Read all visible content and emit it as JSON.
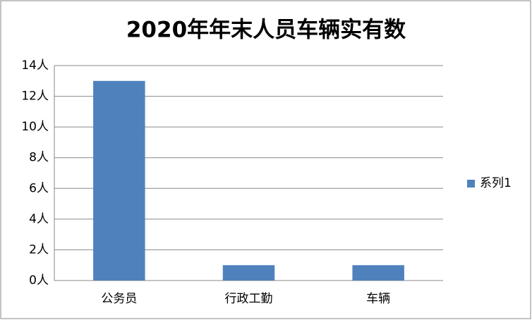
{
  "chart_data": {
    "type": "bar",
    "title": "2020年年末人员车辆实有数",
    "categories": [
      "公务员",
      "行政工勤",
      "车辆"
    ],
    "series": [
      {
        "name": "系列1",
        "color": "#4f81bd",
        "values": [
          13,
          1,
          1
        ]
      }
    ],
    "ylim": [
      0,
      14
    ],
    "yticks": [
      {
        "value": 0,
        "label": "0人"
      },
      {
        "value": 2,
        "label": "2人"
      },
      {
        "value": 4,
        "label": "4人"
      },
      {
        "value": 6,
        "label": "6人"
      },
      {
        "value": 8,
        "label": "8人"
      },
      {
        "value": 10,
        "label": "10人"
      },
      {
        "value": 12,
        "label": "12人"
      },
      {
        "value": 14,
        "label": "14人"
      }
    ],
    "grid": true,
    "legend": "right"
  }
}
